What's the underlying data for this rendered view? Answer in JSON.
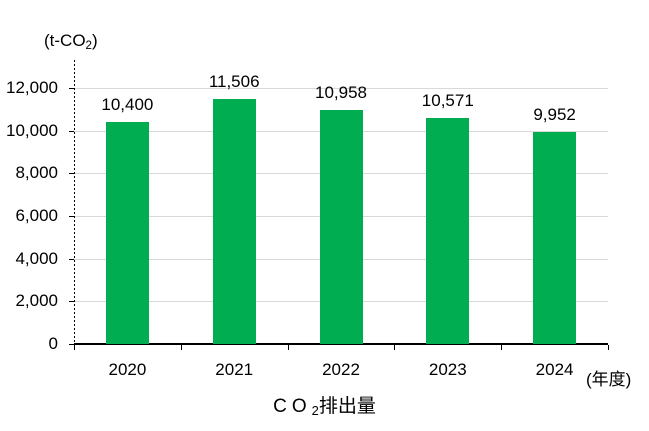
{
  "chart_data": {
    "type": "bar",
    "title": {
      "prefix": "CO",
      "subscript": "2",
      "suffix": "排出量"
    },
    "unit_label": {
      "prefix": "(t-CO",
      "subscript": "2",
      "suffix": ")"
    },
    "x_axis_note": "(年度)",
    "categories": [
      "2020",
      "2021",
      "2022",
      "2023",
      "2024"
    ],
    "values": [
      10400,
      11506,
      10958,
      10571,
      9952
    ],
    "value_labels": [
      "10,400",
      "11,506",
      "10,958",
      "10,571",
      "9,952"
    ],
    "y_tick_labels": [
      "0",
      "2,000",
      "4,000",
      "6,000",
      "8,000",
      "10,000",
      "12,000"
    ],
    "ylim": [
      0,
      12000
    ],
    "y_tick_step": 2000,
    "xlabel": "",
    "ylabel": "",
    "grid": true,
    "legend": false,
    "colors": {
      "bar": "#00AD50",
      "gridline": "#D9D9D9",
      "axis": "#000000",
      "text": "#000000"
    }
  }
}
